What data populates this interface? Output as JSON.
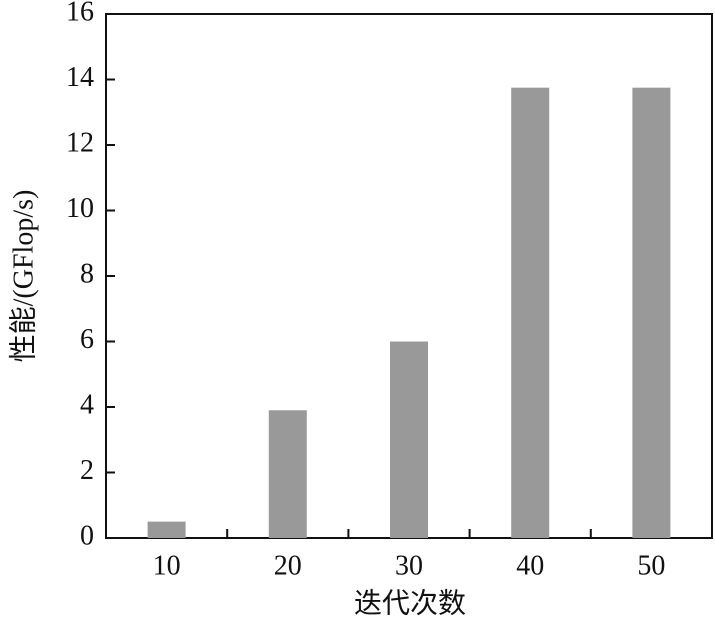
{
  "chart_data": {
    "type": "bar",
    "categories": [
      "10",
      "20",
      "30",
      "40",
      "50"
    ],
    "values": [
      0.5,
      3.9,
      6.0,
      13.75,
      13.75
    ],
    "color": "#999999",
    "xlabel": "迭代次数",
    "ylabel": "性能/(GFlop/s)",
    "ylim": [
      0,
      16
    ],
    "yticks": [
      0,
      2,
      4,
      6,
      8,
      10,
      12,
      14,
      16
    ],
    "grid": false
  }
}
